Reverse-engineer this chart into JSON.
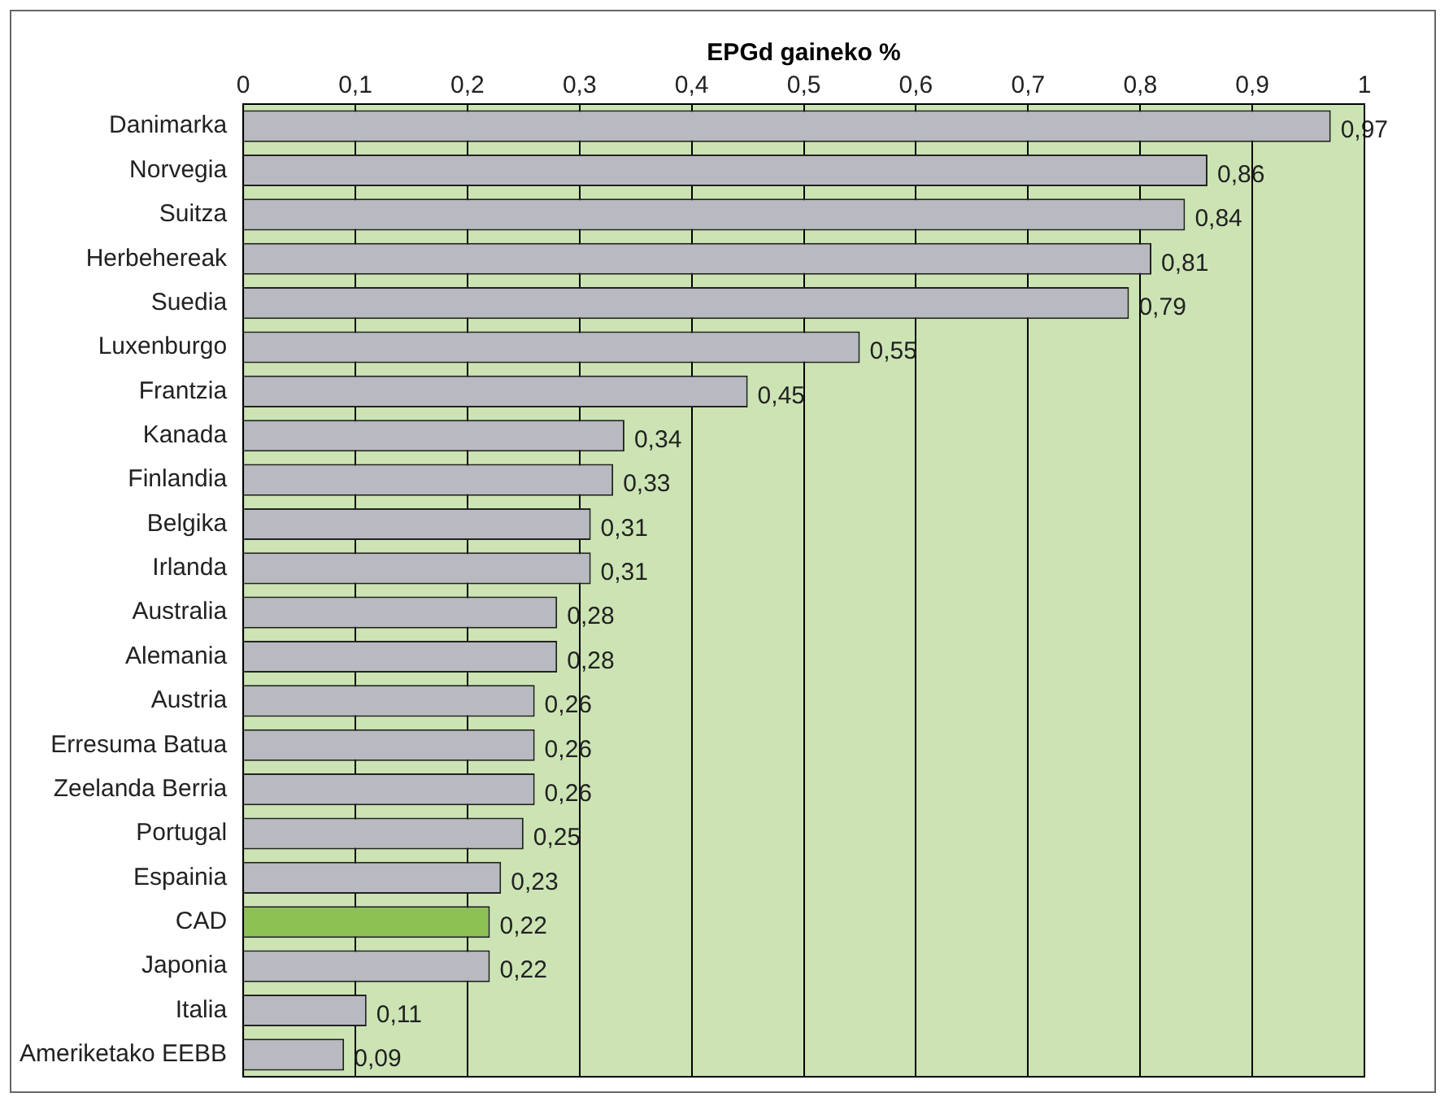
{
  "chart_data": {
    "type": "bar",
    "orientation": "horizontal",
    "xlabel": "EPGd gaineko %",
    "categories": [
      "Danimarka",
      "Norvegia",
      "Suitza",
      "Herbehereak",
      "Suedia",
      "Luxenburgo",
      "Frantzia",
      "Kanada",
      "Finlandia",
      "Belgika",
      "Irlanda",
      "Australia",
      "Alemania",
      "Austria",
      "Erresuma Batua",
      "Zeelanda Berria",
      "Portugal",
      "Espainia",
      "CAD",
      "Japonia",
      "Italia",
      "Ameriketako EEBB"
    ],
    "values": [
      0.97,
      0.86,
      0.84,
      0.81,
      0.79,
      0.55,
      0.45,
      0.34,
      0.33,
      0.31,
      0.31,
      0.28,
      0.28,
      0.26,
      0.26,
      0.26,
      0.25,
      0.23,
      0.22,
      0.22,
      0.11,
      0.09
    ],
    "colors": [
      "#b9b9c1",
      "#b9b9c1",
      "#b9b9c1",
      "#b9b9c1",
      "#b9b9c1",
      "#b9b9c1",
      "#b9b9c1",
      "#b9b9c1",
      "#b9b9c1",
      "#b9b9c1",
      "#b9b9c1",
      "#b9b9c1",
      "#b9b9c1",
      "#b9b9c1",
      "#b9b9c1",
      "#b9b9c1",
      "#b9b9c1",
      "#b9b9c1",
      "#8dc153",
      "#b9b9c1",
      "#b9b9c1",
      "#b9b9c1"
    ],
    "value_labels": [
      "0,97",
      "0,86",
      "0,84",
      "0,81",
      "0,79",
      "0,55",
      "0,45",
      "0,34",
      "0,33",
      "0,31",
      "0,31",
      "0,28",
      "0,28",
      "0,26",
      "0,26",
      "0,26",
      "0,25",
      "0,23",
      "0,22",
      "0,22",
      "0,11",
      "0,09"
    ],
    "xlim": [
      0,
      1
    ],
    "xticks": [
      0,
      {
        "value": 0.1,
        "label": "0,1"
      },
      {
        "value": 0.2,
        "label": "0,2"
      },
      {
        "value": 0.3,
        "label": "0,3"
      },
      {
        "value": 0.4,
        "label": "0,4"
      },
      {
        "value": 0.5,
        "label": "0,5"
      },
      {
        "value": 0.6,
        "label": "0,6"
      },
      {
        "value": 0.7,
        "label": "0,7"
      },
      {
        "value": 0.8,
        "label": "0,8"
      },
      {
        "value": 0.9,
        "label": "0,9"
      },
      1
    ],
    "grid": "x",
    "legend": false
  }
}
